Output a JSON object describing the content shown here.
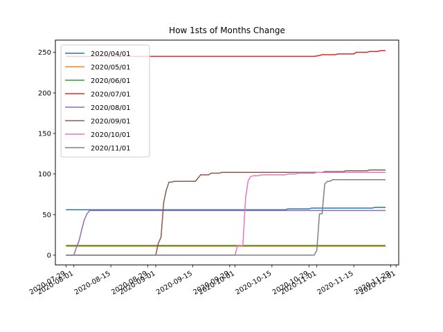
{
  "chart_data": {
    "type": "line",
    "title": "How 1sts of Months Change",
    "xlabel": "",
    "ylabel": "",
    "x_axis": {
      "kind": "date",
      "range": [
        "2020-07-25",
        "2020-12-02"
      ],
      "ticks": [
        "2020-07-29",
        "2020-08-01",
        "2020-08-15",
        "2020-08-29",
        "2020-09-01",
        "2020-09-15",
        "2020-09-29",
        "2020-10-01",
        "2020-10-15",
        "2020-10-29",
        "2020-11-01",
        "2020-11-15",
        "2020-11-29",
        "2020-12-01"
      ],
      "tick_label_rotation_deg": 30
    },
    "y_axis": {
      "range": [
        -12,
        265
      ],
      "ticks": [
        0,
        50,
        100,
        150,
        200,
        250
      ]
    },
    "grid": false,
    "legend_position": "upper-left",
    "series": [
      {
        "name": "2020/04/01",
        "color": "#1f77b4",
        "points": [
          [
            "2020-07-29",
            56
          ],
          [
            "2020-10-20",
            56
          ],
          [
            "2020-10-21",
            57
          ],
          [
            "2020-10-29",
            57
          ],
          [
            "2020-10-30",
            58
          ],
          [
            "2020-11-22",
            58
          ],
          [
            "2020-11-23",
            59
          ],
          [
            "2020-11-27",
            59
          ]
        ]
      },
      {
        "name": "2020/05/01",
        "color": "#ff7f0e",
        "points": [
          [
            "2020-07-29",
            11
          ],
          [
            "2020-11-27",
            11
          ]
        ]
      },
      {
        "name": "2020/06/01",
        "color": "#2ca02c",
        "points": [
          [
            "2020-07-29",
            12
          ],
          [
            "2020-11-27",
            12
          ]
        ]
      },
      {
        "name": "2020/07/01",
        "color": "#d62728",
        "points": [
          [
            "2020-07-29",
            245
          ],
          [
            "2020-10-31",
            245
          ],
          [
            "2020-11-02",
            246
          ],
          [
            "2020-11-03",
            247
          ],
          [
            "2020-11-08",
            247
          ],
          [
            "2020-11-09",
            248
          ],
          [
            "2020-11-15",
            248
          ],
          [
            "2020-11-16",
            250
          ],
          [
            "2020-11-20",
            250
          ],
          [
            "2020-11-21",
            251
          ],
          [
            "2020-11-24",
            251
          ],
          [
            "2020-11-25",
            252
          ],
          [
            "2020-11-27",
            252
          ]
        ]
      },
      {
        "name": "2020/08/01",
        "color": "#9467bd",
        "points": [
          [
            "2020-07-29",
            0
          ],
          [
            "2020-08-01",
            0
          ],
          [
            "2020-08-02",
            10
          ],
          [
            "2020-08-03",
            18
          ],
          [
            "2020-08-04",
            32
          ],
          [
            "2020-08-05",
            44
          ],
          [
            "2020-08-06",
            51
          ],
          [
            "2020-08-07",
            55
          ],
          [
            "2020-11-27",
            55
          ]
        ]
      },
      {
        "name": "2020/09/01",
        "color": "#8c564b",
        "points": [
          [
            "2020-07-29",
            0
          ],
          [
            "2020-09-01",
            0
          ],
          [
            "2020-09-02",
            15
          ],
          [
            "2020-09-03",
            22
          ],
          [
            "2020-09-04",
            65
          ],
          [
            "2020-09-05",
            80
          ],
          [
            "2020-09-06",
            90
          ],
          [
            "2020-09-07",
            90
          ],
          [
            "2020-09-08",
            91
          ],
          [
            "2020-09-16",
            91
          ],
          [
            "2020-09-18",
            99
          ],
          [
            "2020-09-21",
            99
          ],
          [
            "2020-09-22",
            101
          ],
          [
            "2020-09-25",
            101
          ],
          [
            "2020-09-26",
            102
          ],
          [
            "2020-11-03",
            102
          ],
          [
            "2020-11-04",
            103
          ],
          [
            "2020-11-11",
            103
          ],
          [
            "2020-11-12",
            104
          ],
          [
            "2020-11-20",
            104
          ],
          [
            "2020-11-21",
            105
          ],
          [
            "2020-11-27",
            105
          ]
        ]
      },
      {
        "name": "2020/10/01",
        "color": "#e377c2",
        "points": [
          [
            "2020-07-29",
            0
          ],
          [
            "2020-10-01",
            0
          ],
          [
            "2020-10-02",
            12
          ],
          [
            "2020-10-04",
            12
          ],
          [
            "2020-10-05",
            70
          ],
          [
            "2020-10-06",
            92
          ],
          [
            "2020-10-07",
            97
          ],
          [
            "2020-10-08",
            98
          ],
          [
            "2020-10-10",
            98
          ],
          [
            "2020-10-11",
            99
          ],
          [
            "2020-10-20",
            99
          ],
          [
            "2020-10-21",
            100
          ],
          [
            "2020-10-24",
            100
          ],
          [
            "2020-10-25",
            101
          ],
          [
            "2020-10-31",
            101
          ],
          [
            "2020-11-01",
            102
          ],
          [
            "2020-11-27",
            102
          ]
        ]
      },
      {
        "name": "2020/11/01",
        "color": "#7f7f7f",
        "points": [
          [
            "2020-07-29",
            0
          ],
          [
            "2020-10-31",
            0
          ],
          [
            "2020-11-01",
            6
          ],
          [
            "2020-11-02",
            51
          ],
          [
            "2020-11-03",
            51
          ],
          [
            "2020-11-04",
            88
          ],
          [
            "2020-11-05",
            91
          ],
          [
            "2020-11-06",
            91
          ],
          [
            "2020-11-07",
            93
          ],
          [
            "2020-11-27",
            93
          ]
        ]
      }
    ]
  }
}
